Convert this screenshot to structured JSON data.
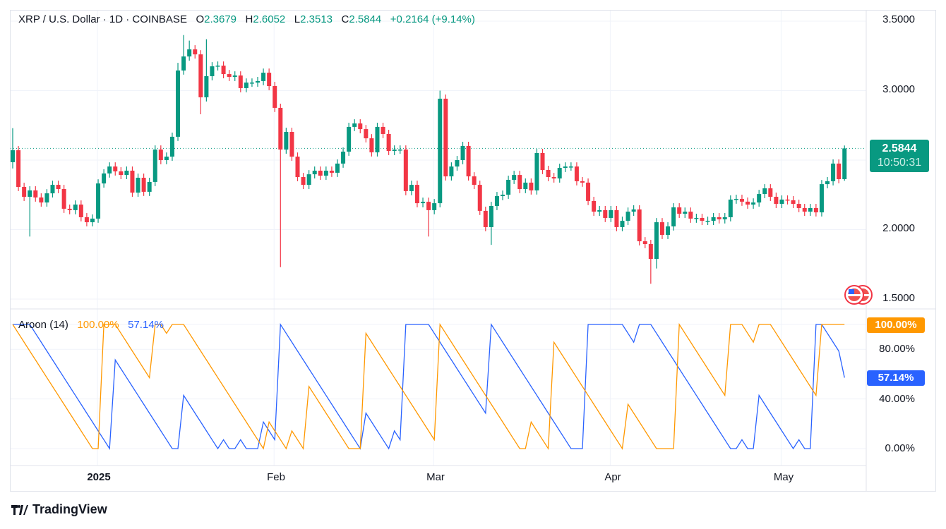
{
  "header": {
    "symbol": "XRP / U.S. Dollar · 1D · COINBASE",
    "o_label": "O",
    "o_value": "2.3679",
    "h_label": "H",
    "h_value": "2.6052",
    "l_label": "L",
    "l_value": "2.3513",
    "c_label": "C",
    "c_value": "2.5844",
    "change": "+0.2164 (+9.14%)"
  },
  "price_badge": {
    "price": "2.5844",
    "countdown": "10:50:31"
  },
  "indicator": {
    "name": "Aroon (14)",
    "up_value": "100.00%",
    "down_value": "57.14%"
  },
  "colors": {
    "up": "#089981",
    "down": "#F23645",
    "aroon_up": "#FF9800",
    "aroon_down": "#2962FF"
  },
  "branding": {
    "logo_text": "TradingView"
  },
  "chart_data": [
    {
      "type": "candlestick",
      "title": "XRP / U.S. Dollar · 1D · COINBASE",
      "y_ticks": [
        "3.5000",
        "3.0000",
        "2.0000",
        "1.5000"
      ],
      "ylim": [
        1.45,
        3.52
      ],
      "x_ticks": [
        "2025",
        "Feb",
        "Mar",
        "Apr",
        "May"
      ],
      "x_tick_index": [
        15,
        46,
        74,
        105,
        135
      ],
      "grid": true,
      "last_price": 2.5844,
      "first_open": 2.485,
      "closes": [
        2.571,
        2.307,
        2.236,
        2.282,
        2.231,
        2.195,
        2.261,
        2.322,
        2.292,
        2.15,
        2.14,
        2.18,
        2.089,
        2.053,
        2.079,
        2.332,
        2.404,
        2.454,
        2.419,
        2.393,
        2.424,
        2.266,
        2.373,
        2.272,
        2.343,
        2.576,
        2.5,
        2.525,
        2.668,
        3.145,
        3.246,
        3.297,
        3.261,
        2.952,
        3.104,
        3.175,
        3.18,
        3.119,
        3.099,
        3.109,
        3.018,
        3.058,
        3.058,
        3.069,
        3.129,
        3.033,
        2.876,
        2.576,
        2.703,
        2.525,
        2.378,
        2.322,
        2.398,
        2.424,
        2.388,
        2.424,
        2.409,
        2.475,
        2.561,
        2.739,
        2.764,
        2.723,
        2.657,
        2.556,
        2.739,
        2.688,
        2.566,
        2.576,
        2.576,
        2.277,
        2.322,
        2.19,
        2.2,
        2.14,
        2.19,
        2.942,
        2.383,
        2.454,
        2.5,
        2.602,
        2.383,
        2.322,
        2.135,
        2.018,
        2.17,
        2.241,
        2.251,
        2.358,
        2.393,
        2.292,
        2.338,
        2.282,
        2.551,
        2.429,
        2.378,
        2.368,
        2.444,
        2.454,
        2.454,
        2.348,
        2.338,
        2.206,
        2.129,
        2.14,
        2.084,
        2.14,
        2.018,
        2.063,
        2.129,
        2.145,
        1.916,
        1.896,
        1.789,
        2.053,
        1.962,
        2.023,
        2.16,
        2.114,
        2.129,
        2.079,
        2.084,
        2.063,
        2.063,
        2.089,
        2.074,
        2.089,
        2.216,
        2.221,
        2.201,
        2.18,
        2.195,
        2.256,
        2.297,
        2.236,
        2.185,
        2.216,
        2.211,
        2.185,
        2.155,
        2.129,
        2.155,
        2.124,
        2.327,
        2.348,
        2.475,
        2.363,
        2.584
      ],
      "wick_extremes": {
        "0": {
          "h": 2.73,
          "l": 2.44
        },
        "3": {
          "l": 1.95
        },
        "29": {
          "h": 3.2
        },
        "30": {
          "h": 3.4
        },
        "31": {
          "h": 3.36
        },
        "33": {
          "l": 2.83
        },
        "34": {
          "h": 3.37
        },
        "47": {
          "l": 1.73
        },
        "73": {
          "l": 1.95
        },
        "75": {
          "h": 3.0
        },
        "84": {
          "l": 1.89
        },
        "113": {
          "l": 1.72
        },
        "112": {
          "l": 1.61
        },
        "146": {
          "h": 2.6052,
          "l": 2.3513
        }
      }
    },
    {
      "type": "line",
      "title": "Aroon (14)",
      "period": 14,
      "y_ticks": [
        "100.00%",
        "80.00%",
        "40.00%",
        "0.00%"
      ],
      "ylim": [
        0,
        100
      ],
      "series": [
        {
          "name": "Aroon Up",
          "last": 100.0
        },
        {
          "name": "Aroon Down",
          "last": 57.14
        }
      ]
    }
  ]
}
